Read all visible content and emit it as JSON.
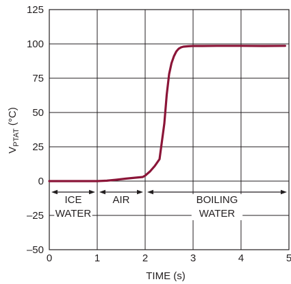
{
  "chart_data": {
    "type": "line",
    "xlabel": "TIME (s)",
    "ylabel_main": "V",
    "ylabel_sub": "PTAT",
    "ylabel_unit": " (°C)",
    "xlim": [
      0,
      5
    ],
    "ylim": [
      -50,
      125
    ],
    "grid": true,
    "x_ticks": [
      0,
      1,
      2,
      3,
      4,
      5
    ],
    "x_tick_labels": [
      "0",
      "1",
      "2",
      "3",
      "4",
      "5"
    ],
    "y_ticks": [
      -50,
      -25,
      0,
      25,
      50,
      75,
      100,
      125
    ],
    "y_tick_labels": [
      "–50",
      "–25",
      "0",
      "25",
      "50",
      "75",
      "100",
      "125"
    ],
    "series": [
      {
        "color": "#8b1538",
        "x": [
          0,
          0.25,
          0.5,
          0.75,
          1.0,
          1.2,
          1.4,
          1.6,
          1.8,
          1.95,
          2.0,
          2.1,
          2.2,
          2.3,
          2.4,
          2.45,
          2.5,
          2.55,
          2.6,
          2.65,
          2.7,
          2.75,
          2.8,
          2.9,
          3.0,
          3.2,
          3.5,
          4.0,
          4.5,
          4.92
        ],
        "y": [
          0,
          0,
          0,
          0,
          0,
          0.3,
          1,
          1.8,
          2.5,
          3,
          4,
          7,
          11,
          16,
          42,
          63,
          78,
          86,
          91,
          94.5,
          96.5,
          97.5,
          98,
          98.3,
          98.5,
          98.5,
          98.6,
          98.6,
          98.5,
          98.6
        ]
      }
    ],
    "regions": [
      {
        "id": "ice",
        "lines": [
          "ICE",
          "WATER"
        ],
        "x_start": 0,
        "x_end": 1
      },
      {
        "id": "air",
        "lines": [
          "AIR"
        ],
        "x_start": 1,
        "x_end": 2
      },
      {
        "id": "boiling",
        "lines": [
          "BOILING",
          "WATER"
        ],
        "x_start": 2,
        "x_end": 5
      }
    ],
    "region_arrow_y": -8
  }
}
